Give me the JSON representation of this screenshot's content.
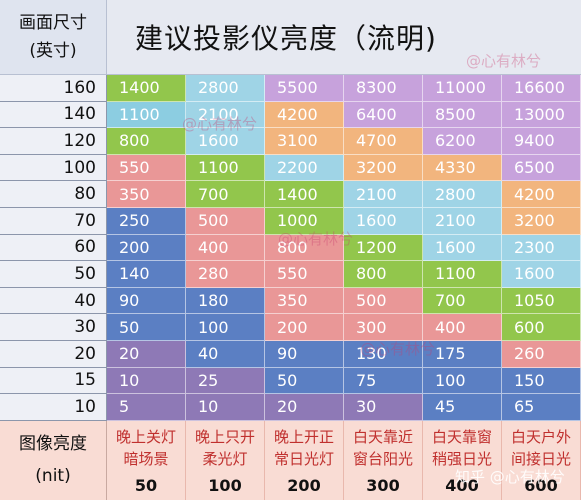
{
  "header": {
    "size_title_line1": "画面尺寸",
    "size_title_line2": "(英寸)",
    "title": "建议投影仪亮度（流明)"
  },
  "sizes": [
    "160",
    "140",
    "120",
    "100",
    "80",
    "70",
    "60",
    "50",
    "40",
    "30",
    "20",
    "15",
    "10"
  ],
  "table": [
    [
      "1400",
      "2800",
      "5500",
      "8300",
      "11000",
      "16600"
    ],
    [
      "1100",
      "2100",
      "4200",
      "6400",
      "8500",
      "13000"
    ],
    [
      "800",
      "1600",
      "3100",
      "4700",
      "6200",
      "9400"
    ],
    [
      "550",
      "1100",
      "2200",
      "3200",
      "4330",
      "6500"
    ],
    [
      "350",
      "700",
      "1400",
      "2100",
      "2800",
      "4200"
    ],
    [
      "250",
      "500",
      "1000",
      "1600",
      "2100",
      "3200"
    ],
    [
      "200",
      "400",
      "800",
      "1200",
      "1600",
      "2300"
    ],
    [
      "140",
      "280",
      "550",
      "800",
      "1100",
      "1600"
    ],
    [
      "90",
      "180",
      "350",
      "500",
      "700",
      "1050"
    ],
    [
      "50",
      "100",
      "200",
      "300",
      "400",
      "600"
    ],
    [
      "20",
      "40",
      "90",
      "130",
      "175",
      "260"
    ],
    [
      "10",
      "25",
      "50",
      "75",
      "100",
      "150"
    ],
    [
      "5",
      "10",
      "20",
      "30",
      "45",
      "65"
    ]
  ],
  "colors": [
    [
      "#92c64c",
      "#9fd4e6",
      "#c7a2dc",
      "#c7a2dc",
      "#c7a2dc",
      "#c7a2dc"
    ],
    [
      "#8ccde1",
      "#9fd4e6",
      "#f2b57e",
      "#c7a2dc",
      "#c7a2dc",
      "#c7a2dc"
    ],
    [
      "#92c64c",
      "#9fd4e6",
      "#f2b57e",
      "#f2b57e",
      "#c7a2dc",
      "#c7a2dc"
    ],
    [
      "#e99797",
      "#92c64c",
      "#9fd4e6",
      "#f2b57e",
      "#f2b57e",
      "#c7a2dc"
    ],
    [
      "#e99797",
      "#92c64c",
      "#92c64c",
      "#9fd4e6",
      "#9fd4e6",
      "#f2b57e"
    ],
    [
      "#5b7fc3",
      "#e99797",
      "#92c64c",
      "#9fd4e6",
      "#9fd4e6",
      "#f2b57e"
    ],
    [
      "#5b7fc3",
      "#e99797",
      "#e99797",
      "#92c64c",
      "#9fd4e6",
      "#9fd4e6"
    ],
    [
      "#5b7fc3",
      "#e99797",
      "#e99797",
      "#92c64c",
      "#92c64c",
      "#9fd4e6"
    ],
    [
      "#5b7fc3",
      "#5b7fc3",
      "#e99797",
      "#e99797",
      "#92c64c",
      "#92c64c"
    ],
    [
      "#5b7fc3",
      "#5b7fc3",
      "#e99797",
      "#e99797",
      "#e99797",
      "#92c64c"
    ],
    [
      "#8e79b6",
      "#5b7fc3",
      "#5b7fc3",
      "#5b7fc3",
      "#5b7fc3",
      "#e99797"
    ],
    [
      "#8e79b6",
      "#8e79b6",
      "#5b7fc3",
      "#5b7fc3",
      "#5b7fc3",
      "#5b7fc3"
    ],
    [
      "#8e79b6",
      "#8e79b6",
      "#8e79b6",
      "#8e79b6",
      "#5b7fc3",
      "#5b7fc3"
    ]
  ],
  "footer": {
    "label_line1": "图像亮度",
    "label_line2": "(nit)",
    "columns": [
      {
        "line1": "晚上关灯",
        "line2": "暗场景",
        "nit": "50"
      },
      {
        "line1": "晚上只开",
        "line2": "柔光灯",
        "nit": "100"
      },
      {
        "line1": "晚上开正",
        "line2": "常日光灯",
        "nit": "200"
      },
      {
        "line1": "白天靠近",
        "line2": "窗台阳光",
        "nit": "300"
      },
      {
        "line1": "白天靠窗",
        "line2": "稍强日光",
        "nit": "400"
      },
      {
        "line1": "白天户外",
        "line2": "间接日光",
        "nit": "600"
      }
    ]
  },
  "watermarks": {
    "brand": "@心有林兮",
    "site": "知乎 @心有林兮"
  }
}
